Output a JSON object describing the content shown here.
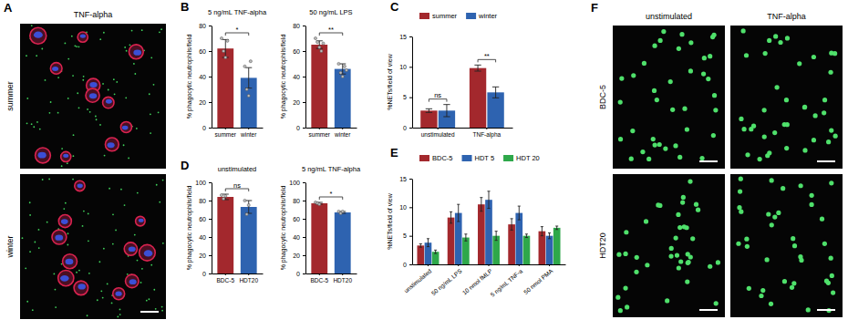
{
  "chart_data": [
    {
      "panel": "A",
      "type": "image",
      "title": "TNF-alpha",
      "rows": [
        "summer",
        "winter"
      ]
    },
    {
      "panel": "B",
      "type": "bar",
      "title": "5 ng/mL TNF-alpha",
      "y_label": "% phagocytic neutrophils/field",
      "categories": [
        "summer",
        "winter"
      ],
      "values": [
        62,
        39
      ],
      "errors": [
        7,
        8
      ],
      "points": [
        [
          70,
          60,
          55,
          68
        ],
        [
          48,
          30,
          25,
          52
        ]
      ],
      "colors": [
        "#a3282d",
        "#2e63b0"
      ],
      "ylim": [
        0,
        80
      ],
      "yticks": [
        0,
        20,
        40,
        60,
        80
      ],
      "significance": [
        {
          "label": "*",
          "categories": [
            "summer",
            "winter"
          ]
        }
      ]
    },
    {
      "type": "bar",
      "title": "50 ng/mL LPS",
      "y_label": "% phagocytic neutrophils/field",
      "categories": [
        "summer",
        "winter"
      ],
      "values": [
        65,
        46
      ],
      "errors": [
        3,
        4
      ],
      "points": [
        [
          70,
          67,
          63,
          60,
          66
        ],
        [
          50,
          43,
          40,
          48,
          45
        ]
      ],
      "colors": [
        "#a3282d",
        "#2e63b0"
      ],
      "ylim": [
        0,
        80
      ],
      "yticks": [
        0,
        20,
        40,
        60,
        80
      ],
      "significance": [
        {
          "label": "**",
          "categories": [
            "summer",
            "winter"
          ]
        }
      ]
    },
    {
      "panel": "C",
      "type": "bar",
      "y_label": "%NETs/field of view",
      "legend": "top",
      "categories": [
        "unstimulated",
        "TNF-alpha"
      ],
      "series": [
        {
          "name": "summer",
          "color": "#a3282d",
          "values": [
            2.8,
            9.8
          ],
          "errors": [
            0.3,
            0.5
          ]
        },
        {
          "name": "winter",
          "color": "#2e63b0",
          "values": [
            2.8,
            5.8
          ],
          "errors": [
            1.0,
            0.9
          ]
        }
      ],
      "ylim": [
        0,
        15
      ],
      "yticks": [
        0,
        5,
        10,
        15
      ],
      "significance": [
        {
          "label": "ns",
          "category": "unstimulated"
        },
        {
          "label": "**",
          "category": "TNF-alpha"
        }
      ]
    },
    {
      "panel": "D",
      "type": "bar",
      "title": "unstimulated",
      "y_label": "% phagocytic neutrophils/field",
      "categories": [
        "BDC-5",
        "HDT20"
      ],
      "values": [
        84,
        73
      ],
      "errors": [
        3,
        7
      ],
      "points": [
        [
          86,
          82,
          85
        ],
        [
          80,
          65,
          75
        ]
      ],
      "colors": [
        "#a3282d",
        "#2e63b0"
      ],
      "ylim": [
        0,
        100
      ],
      "yticks": [
        0,
        20,
        40,
        60,
        80,
        100
      ],
      "significance": [
        {
          "label": "ns",
          "categories": [
            "BDC-5",
            "HDT20"
          ]
        }
      ]
    },
    {
      "type": "bar",
      "title": "5 ng/mL TNF-alpha",
      "y_label": "% phagocytic neutrophils/field",
      "categories": [
        "BDC-5",
        "HDT20"
      ],
      "values": [
        77,
        67
      ],
      "errors": [
        1,
        1
      ],
      "points": [
        [
          78,
          77,
          76
        ],
        [
          68,
          66,
          68
        ]
      ],
      "colors": [
        "#a3282d",
        "#2e63b0"
      ],
      "ylim": [
        0,
        100
      ],
      "yticks": [
        0,
        20,
        40,
        60,
        80,
        100
      ],
      "significance": [
        {
          "label": "*",
          "categories": [
            "BDC-5",
            "HDT20"
          ]
        }
      ]
    },
    {
      "panel": "E",
      "type": "bar",
      "y_label": "%NETs/field of view",
      "legend": "top",
      "categories": [
        "unstimulated",
        "50 ng/mL LPS",
        "10 nmol fMLP",
        "5 ng/mL TNF-a",
        "50 nmol PMA"
      ],
      "series": [
        {
          "name": "BDC-5",
          "color": "#a3282d",
          "values": [
            3.3,
            8.2,
            10.5,
            7.0,
            5.8
          ],
          "errors": [
            0.3,
            1.0,
            1.2,
            1.0,
            0.8
          ]
        },
        {
          "name": "HDT 5",
          "color": "#2e63b0",
          "values": [
            3.8,
            9.0,
            11.3,
            9.0,
            5.0
          ],
          "errors": [
            0.7,
            1.5,
            1.5,
            1.2,
            0.5
          ]
        },
        {
          "name": "HDT 20",
          "color": "#2ea84a",
          "values": [
            2.2,
            4.7,
            5.0,
            5.0,
            6.4
          ],
          "errors": [
            0.3,
            0.6,
            0.8,
            0.3,
            0.3
          ]
        }
      ],
      "ylim": [
        0,
        15
      ],
      "yticks": [
        0,
        5,
        10,
        15
      ]
    },
    {
      "panel": "F",
      "type": "image",
      "columns": [
        "unstimulated",
        "TNF-alpha"
      ],
      "rows": [
        "BDC-5",
        "HDT20"
      ]
    }
  ]
}
